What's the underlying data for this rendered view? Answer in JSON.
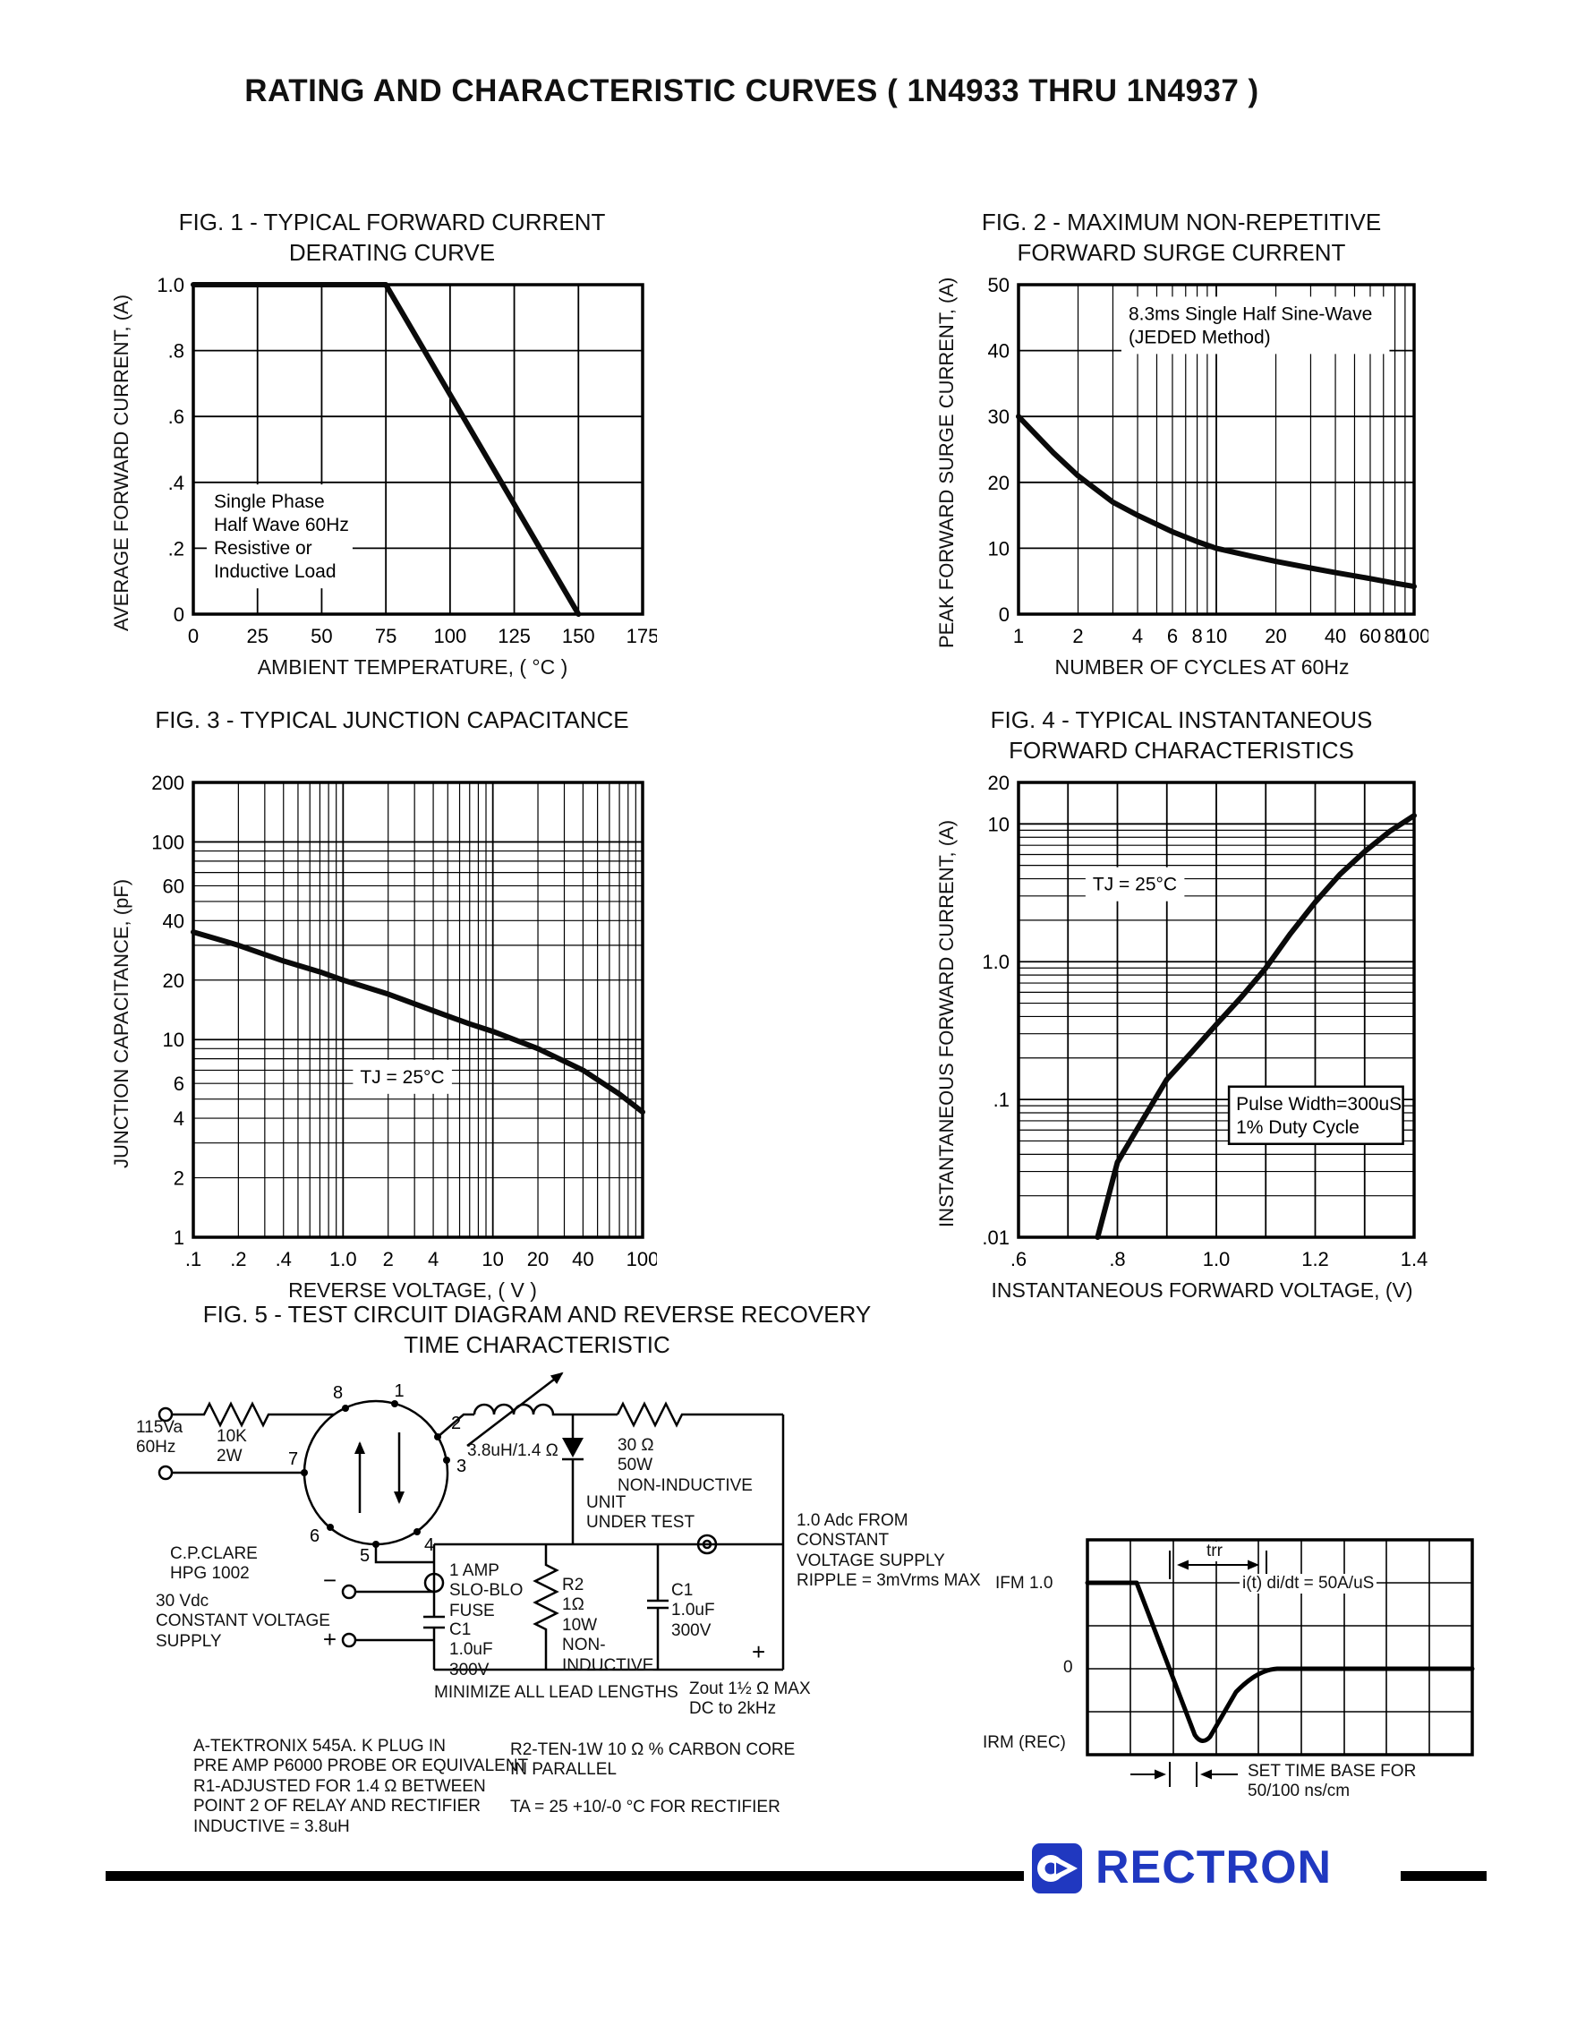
{
  "page": {
    "title": "RATING AND CHARACTERISTIC CURVES ( 1N4933 THRU 1N4937 )"
  },
  "colors": {
    "brand_blue": "#2038c0",
    "ink": "#111111"
  },
  "chart_data": [
    {
      "id": "fig1",
      "type": "line",
      "title": "FIG. 1 - TYPICAL FORWARD CURRENT\nDERATING CURVE",
      "xlabel": "AMBIENT TEMPERATURE, ( °C )",
      "ylabel": "AVERAGE FORWARD CURRENT, (A)",
      "x": {
        "type": "linear",
        "min": 0,
        "max": 175,
        "grid_step": 25,
        "ticks": [
          [
            0,
            "0"
          ],
          [
            25,
            "25"
          ],
          [
            50,
            "50"
          ],
          [
            75,
            "75"
          ],
          [
            100,
            "100"
          ],
          [
            125,
            "125"
          ],
          [
            150,
            "150"
          ],
          [
            175,
            "175"
          ]
        ]
      },
      "y": {
        "type": "linear",
        "min": 0,
        "max": 1.0,
        "grid_step": 0.2,
        "ticks": [
          [
            0,
            "0"
          ],
          [
            0.2,
            ".2"
          ],
          [
            0.4,
            ".4"
          ],
          [
            0.6,
            ".6"
          ],
          [
            0.8,
            ".8"
          ],
          [
            1.0,
            "1.0"
          ]
        ]
      },
      "series": [
        {
          "name": "derating",
          "points": [
            [
              0,
              1.0
            ],
            [
              75,
              1.0
            ],
            [
              150,
              0
            ]
          ]
        }
      ],
      "annotations": [
        {
          "x": 8,
          "y": 0.38,
          "text": "Single Phase\nHalf Wave 60Hz\nResistive or\nInductive Load",
          "boxed": false
        }
      ]
    },
    {
      "id": "fig2",
      "type": "line",
      "title": "FIG. 2 - MAXIMUM NON-REPETITIVE\nFORWARD SURGE CURRENT",
      "xlabel": "NUMBER OF CYCLES AT 60Hz",
      "ylabel": "PEAK FORWARD SURGE CURRENT, (A)",
      "x": {
        "type": "log",
        "min": 1,
        "max": 100,
        "ticks": [
          [
            1,
            "1"
          ],
          [
            2,
            "2"
          ],
          [
            4,
            "4"
          ],
          [
            6,
            "6"
          ],
          [
            8,
            "8"
          ],
          [
            10,
            "10"
          ],
          [
            20,
            "20"
          ],
          [
            40,
            "40"
          ],
          [
            60,
            "60"
          ],
          [
            80,
            "80"
          ],
          [
            100,
            "100"
          ]
        ]
      },
      "y": {
        "type": "linear",
        "min": 0,
        "max": 50,
        "grid_step": 10,
        "ticks": [
          [
            0,
            "0"
          ],
          [
            10,
            "10"
          ],
          [
            20,
            "20"
          ],
          [
            30,
            "30"
          ],
          [
            40,
            "40"
          ],
          [
            50,
            "50"
          ]
        ]
      },
      "series": [
        {
          "name": "surge",
          "points": [
            [
              1,
              30
            ],
            [
              1.5,
              24.5
            ],
            [
              2,
              21
            ],
            [
              3,
              17
            ],
            [
              4,
              15
            ],
            [
              6,
              12.5
            ],
            [
              8,
              11
            ],
            [
              10,
              10
            ],
            [
              15,
              8.8
            ],
            [
              20,
              8
            ],
            [
              30,
              7
            ],
            [
              40,
              6.3
            ],
            [
              60,
              5.4
            ],
            [
              80,
              4.7
            ],
            [
              100,
              4.2
            ]
          ]
        }
      ],
      "annotations": [
        {
          "x": 3.6,
          "y": 47.5,
          "text": "8.3ms Single Half Sine-Wave\n(JEDED Method)",
          "boxed": false
        }
      ]
    },
    {
      "id": "fig3",
      "type": "line",
      "title": "FIG. 3 - TYPICAL JUNCTION CAPACITANCE",
      "xlabel": "REVERSE VOLTAGE, ( V )",
      "ylabel": "JUNCTION CAPACITANCE, (pF)",
      "x": {
        "type": "log",
        "min": 0.1,
        "max": 100,
        "ticks": [
          [
            0.1,
            ".1"
          ],
          [
            0.2,
            ".2"
          ],
          [
            0.4,
            ".4"
          ],
          [
            1,
            "1.0"
          ],
          [
            2,
            "2"
          ],
          [
            4,
            "4"
          ],
          [
            10,
            "10"
          ],
          [
            20,
            "20"
          ],
          [
            40,
            "40"
          ],
          [
            100,
            "100"
          ]
        ]
      },
      "y": {
        "type": "log",
        "min": 1,
        "max": 200,
        "ticks": [
          [
            1,
            "1"
          ],
          [
            2,
            "2"
          ],
          [
            4,
            "4"
          ],
          [
            6,
            "6"
          ],
          [
            10,
            "10"
          ],
          [
            20,
            "20"
          ],
          [
            40,
            "40"
          ],
          [
            60,
            "60"
          ],
          [
            100,
            "100"
          ],
          [
            200,
            "200"
          ]
        ]
      },
      "series": [
        {
          "name": "capacitance",
          "points": [
            [
              0.1,
              35
            ],
            [
              0.2,
              30
            ],
            [
              0.4,
              25
            ],
            [
              0.7,
              22
            ],
            [
              1,
              20
            ],
            [
              2,
              17
            ],
            [
              4,
              14
            ],
            [
              7,
              12
            ],
            [
              10,
              11
            ],
            [
              20,
              9
            ],
            [
              40,
              7
            ],
            [
              70,
              5.3
            ],
            [
              100,
              4.3
            ]
          ]
        }
      ],
      "annotations": [
        {
          "x": 1.3,
          "y": 7.5,
          "text": "TJ = 25°C",
          "boxed": false
        }
      ]
    },
    {
      "id": "fig4",
      "type": "line",
      "title": "FIG. 4 - TYPICAL INSTANTANEOUS\nFORWARD CHARACTERISTICS",
      "xlabel": "INSTANTANEOUS FORWARD VOLTAGE, (V)",
      "ylabel": "INSTANTANEOUS FORWARD CURRENT, (A)",
      "x": {
        "type": "linear",
        "min": 0.6,
        "max": 1.4,
        "grid_step": 0.1,
        "ticks": [
          [
            0.6,
            ".6"
          ],
          [
            0.8,
            ".8"
          ],
          [
            1.0,
            "1.0"
          ],
          [
            1.2,
            "1.2"
          ],
          [
            1.4,
            "1.4"
          ]
        ]
      },
      "y": {
        "type": "log",
        "min": 0.01,
        "max": 20,
        "ticks": [
          [
            0.01,
            ".01"
          ],
          [
            0.1,
            ".1"
          ],
          [
            1,
            "1.0"
          ],
          [
            10,
            "10"
          ],
          [
            20,
            "20"
          ]
        ]
      },
      "series": [
        {
          "name": "vf-if",
          "points": [
            [
              0.76,
              0.01
            ],
            [
              0.8,
              0.035
            ],
            [
              0.85,
              0.07
            ],
            [
              0.9,
              0.14
            ],
            [
              0.95,
              0.22
            ],
            [
              1.0,
              0.35
            ],
            [
              1.05,
              0.55
            ],
            [
              1.1,
              0.9
            ],
            [
              1.15,
              1.6
            ],
            [
              1.2,
              2.7
            ],
            [
              1.25,
              4.3
            ],
            [
              1.3,
              6.3
            ],
            [
              1.35,
              8.8
            ],
            [
              1.4,
              11.5
            ]
          ]
        }
      ],
      "annotations": [
        {
          "x": 0.75,
          "y": 4.5,
          "text": "TJ = 25°C",
          "boxed": false
        },
        {
          "x": 1.04,
          "y": 0.115,
          "text": "Pulse Width=300uS\n1% Duty Cycle",
          "boxed": true
        }
      ]
    }
  ],
  "figure5": {
    "title": "FIG. 5 - TEST CIRCUIT DIAGRAM  AND REVERSE RECOVERY\nTIME CHARACTERISTIC",
    "circuit": {
      "source": "115Va\n60Hz",
      "r1": "10K\n2W",
      "relay_pins": [
        "1",
        "2",
        "3",
        "4",
        "5",
        "6",
        "7",
        "8"
      ],
      "relay_name": "C.P.CLARE\nHPG 1002",
      "inductor": "3.8uH/1.4 Ω",
      "r30": "30 Ω\n50W\nNON-INDUCTIVE",
      "uut": "UNIT\nUNDER TEST",
      "fuse": "1 AMP\nSLO-BLO\nFUSE",
      "c1a": "C1\n1.0uF\n300V",
      "r2": "R2\n1Ω\n10W\nNON-\nINDUCTIVE",
      "c1b": "C1\n1.0uF\n300V",
      "supply_out": "1.0 Adc FROM\nCONSTANT\nVOLTAGE SUPPLY\nRIPPLE = 3mVrms MAX",
      "dc_supply": "30 Vdc\nCONSTANT VOLTAGE\nSUPPLY",
      "minus": "−",
      "plus": "+",
      "minimize": "MINIMIZE ALL LEAD LENGTHS",
      "zout": "Zout 1½ Ω MAX\nDC to 2kHz",
      "note_a": "A-TEKTRONIX 545A. K PLUG IN\nPRE AMP P6000 PROBE OR EQUIVALENT\nR1-ADJUSTED FOR 1.4 Ω BETWEEN\nPOINT 2 OF RELAY AND RECTIFIER\nINDUCTIVE = 3.8uH",
      "note_r2": "R2-TEN-1W 10 Ω % CARBON CORE\nIN PARALLEL",
      "note_ta": "TA = 25 +10/-0 °C   FOR RECTIFIER"
    },
    "waveform": {
      "ifm": "IFM 1.0",
      "zero": "0",
      "irm": "IRM (REC)",
      "trr": "trr",
      "didt": "i(t) di/dt = 50A/uS",
      "timebase": "SET TIME BASE FOR\n50/100 ns/cm"
    }
  },
  "footer": {
    "brand": "RECTRON"
  }
}
